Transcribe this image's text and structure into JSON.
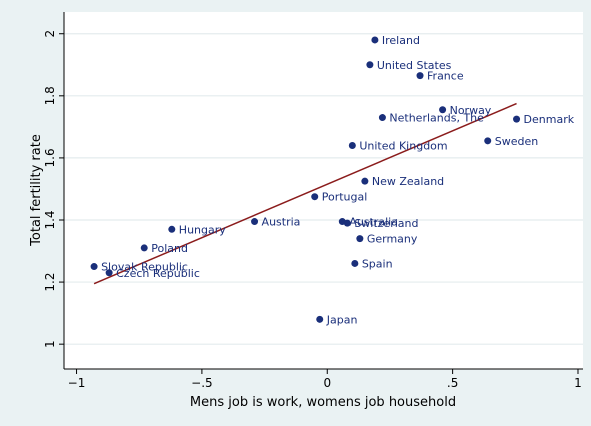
{
  "chart_data": {
    "type": "scatter",
    "title": "",
    "xlabel": "Mens job is work, womens job household",
    "ylabel": "Total fertility rate",
    "xlim": [
      -1.05,
      1.02
    ],
    "ylim": [
      0.92,
      2.07
    ],
    "xticks": [
      {
        "value": -1,
        "label": "−1"
      },
      {
        "value": -0.5,
        "label": "−.5"
      },
      {
        "value": 0,
        "label": "0"
      },
      {
        "value": 0.5,
        "label": ".5"
      },
      {
        "value": 1,
        "label": "1"
      }
    ],
    "yticks": [
      {
        "value": 1,
        "label": "1"
      },
      {
        "value": 1.2,
        "label": "1.2"
      },
      {
        "value": 1.4,
        "label": "1.4"
      },
      {
        "value": 1.6,
        "label": "1.6"
      },
      {
        "value": 1.8,
        "label": "1.8"
      },
      {
        "value": 2,
        "label": "2"
      }
    ],
    "grid": "horizontal",
    "colors": {
      "points": "#1a2f7a",
      "fit_line": "#8b1c1c",
      "background": "#eaf2f3",
      "plot_area": "#ffffff"
    },
    "points": [
      {
        "label": "Ireland",
        "x": 0.19,
        "y": 1.98
      },
      {
        "label": "United States",
        "x": 0.17,
        "y": 1.9
      },
      {
        "label": "France",
        "x": 0.37,
        "y": 1.865
      },
      {
        "label": "Norway",
        "x": 0.46,
        "y": 1.755
      },
      {
        "label": "Netherlands, The",
        "x": 0.22,
        "y": 1.73
      },
      {
        "label": "Denmark",
        "x": 0.755,
        "y": 1.725
      },
      {
        "label": "Sweden",
        "x": 0.64,
        "y": 1.655
      },
      {
        "label": "United Kingdom",
        "x": 0.1,
        "y": 1.64
      },
      {
        "label": "New Zealand",
        "x": 0.15,
        "y": 1.525
      },
      {
        "label": "Portugal",
        "x": -0.05,
        "y": 1.475
      },
      {
        "label": "Austria",
        "x": -0.29,
        "y": 1.395
      },
      {
        "label": "Australia",
        "x": 0.06,
        "y": 1.395
      },
      {
        "label": "Switzerland",
        "x": 0.08,
        "y": 1.39
      },
      {
        "label": "Hungary",
        "x": -0.62,
        "y": 1.37
      },
      {
        "label": "Germany",
        "x": 0.13,
        "y": 1.34
      },
      {
        "label": "Poland",
        "x": -0.73,
        "y": 1.31
      },
      {
        "label": "Spain",
        "x": 0.11,
        "y": 1.26
      },
      {
        "label": "Slovak Republic",
        "x": -0.93,
        "y": 1.25
      },
      {
        "label": "Czech Republic",
        "x": -0.87,
        "y": 1.23
      },
      {
        "label": "Japan",
        "x": -0.03,
        "y": 1.08
      }
    ],
    "fit_line": {
      "x": [
        -0.93,
        0.755
      ],
      "y": [
        1.195,
        1.775
      ]
    }
  }
}
